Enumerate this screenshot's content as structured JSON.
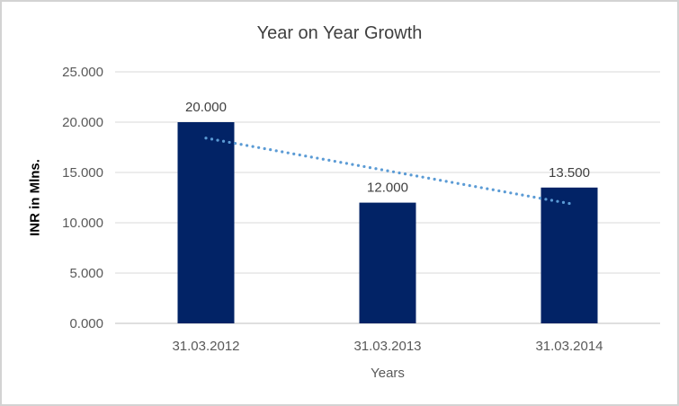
{
  "chart_data": {
    "type": "bar",
    "title": "Year on Year Growth",
    "xlabel": "Years",
    "ylabel": "INR in Mlns.",
    "categories": [
      "31.03.2012",
      "31.03.2013",
      "31.03.2014"
    ],
    "values": [
      20.0,
      12.0,
      13.5
    ],
    "value_labels": [
      "20.000",
      "12.000",
      "13.500"
    ],
    "ylim": [
      0,
      25
    ],
    "ytick_step": 5,
    "ytick_labels": [
      "0.000",
      "5.000",
      "10.000",
      "15.000",
      "20.000",
      "25.000"
    ],
    "grid": true,
    "legend": "none",
    "colors": {
      "bar": "#022366",
      "trendline": "#5b9bd5",
      "gridline": "#d9d9d9",
      "axis_line": "#bfbfbf",
      "title_text": "#3f3f3f",
      "label_text": "#404040",
      "tick_text": "#595959",
      "border": "#d3d3d3"
    },
    "trendline": {
      "style": "dotted",
      "shape": "linear",
      "values": [
        18.417,
        15.167,
        11.917
      ]
    }
  }
}
